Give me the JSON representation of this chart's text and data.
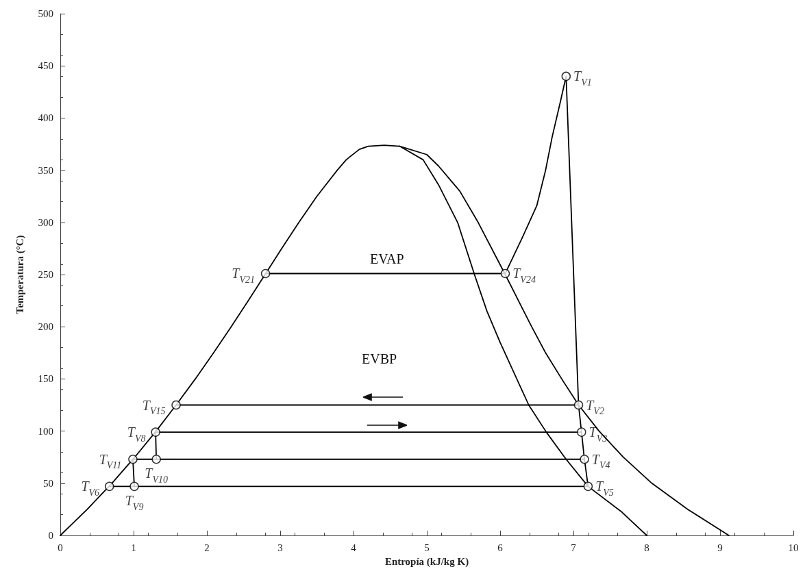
{
  "chart_data": {
    "type": "line",
    "xlabel": "Entropía (kJ/kg K)",
    "ylabel": "Temperatura (°C)",
    "xlim": [
      0,
      10
    ],
    "xticks": [
      0,
      1,
      2,
      3,
      4,
      5,
      6,
      7,
      8,
      9,
      10
    ],
    "ylim": [
      0,
      500
    ],
    "yticks": [
      0,
      50,
      100,
      150,
      200,
      250,
      300,
      350,
      400,
      450,
      500
    ],
    "annotations": [
      "EVAP",
      "EVBP"
    ],
    "series": [
      {
        "color": "#000000",
        "marker": "none",
        "x": [
          0,
          0.367,
          0.704,
          1.016,
          1.307,
          1.58,
          1.842,
          2.091,
          2.331,
          2.565,
          2.793,
          3.02,
          3.255,
          3.5,
          3.778,
          3.9,
          4.08,
          4.2,
          4.42,
          4.63,
          5.0,
          5.16,
          5.45,
          5.7,
          6.07,
          6.25,
          6.43,
          6.62,
          6.84,
          7.07,
          7.35,
          7.68,
          8.07,
          8.56,
          9.12
        ],
        "values": [
          0,
          25,
          50,
          75,
          100,
          125,
          150,
          175,
          200,
          225,
          250,
          275,
          300,
          325,
          350,
          360,
          370,
          373,
          374,
          373,
          365,
          354,
          330,
          300,
          250,
          225,
          200,
          175,
          150,
          125,
          100,
          75,
          50,
          25,
          0
        ]
      },
      {
        "color": "#000000",
        "marker": "none",
        "x": [
          4.63,
          4.95,
          5.16,
          5.42,
          5.65,
          5.82,
          6.0,
          6.39,
          6.63,
          6.9,
          7.2,
          7.65,
          8.0
        ],
        "values": [
          373,
          360,
          336,
          300,
          250,
          215,
          185,
          125,
          99,
          73,
          47,
          23,
          0
        ]
      },
      {
        "color": "#000000",
        "marker": "none",
        "x": [
          6.07,
          6.3,
          6.5,
          6.62,
          6.71,
          6.82,
          6.9,
          7.07,
          7.11,
          7.15,
          7.2
        ],
        "values": [
          251,
          285,
          316,
          350,
          382,
          415,
          440,
          125,
          99,
          73,
          47
        ]
      },
      {
        "color": "#000000",
        "marker": "none",
        "x": [
          2.8,
          6.07
        ],
        "values": [
          251,
          251
        ]
      },
      {
        "color": "#000000",
        "marker": "none",
        "x": [
          1.58,
          7.07
        ],
        "values": [
          125,
          125
        ]
      },
      {
        "color": "#000000",
        "marker": "none",
        "x": [
          1.3,
          7.11
        ],
        "values": [
          99,
          99
        ]
      },
      {
        "color": "#000000",
        "marker": "none",
        "x": [
          0.99,
          7.15
        ],
        "values": [
          73,
          73
        ]
      },
      {
        "color": "#000000",
        "marker": "none",
        "x": [
          0.67,
          7.2
        ],
        "values": [
          47,
          47
        ]
      },
      {
        "color": "#000000",
        "marker": "none",
        "x": [
          1.3,
          1.31
        ],
        "values": [
          99,
          73
        ]
      },
      {
        "color": "#000000",
        "marker": "none",
        "x": [
          0.99,
          1.01
        ],
        "values": [
          73,
          47
        ]
      },
      {
        "type": "scatter",
        "color": "#000000",
        "marker": "circle",
        "x": [
          6.9,
          7.07,
          7.11,
          7.15,
          7.2,
          0.67,
          1.3,
          1.01,
          1.31,
          0.99,
          1.58,
          2.8,
          6.07
        ],
        "values": [
          440,
          125,
          99,
          73,
          47,
          47,
          99,
          47,
          73,
          73,
          125,
          251,
          251
        ],
        "value_labels": [
          "T$_{V1}$",
          "T$_{V2}$",
          "T$_{V3}$",
          "T$_{V4}$",
          "T$_{V5}$",
          "T$_{V6}$",
          "T$_{V8}$",
          "T$_{V9}$",
          "T$_{V10}$",
          "T$_{V11}$",
          "T$_{V15}$",
          "T$_{V21}$",
          "T$_{V24}$"
        ]
      }
    ]
  }
}
